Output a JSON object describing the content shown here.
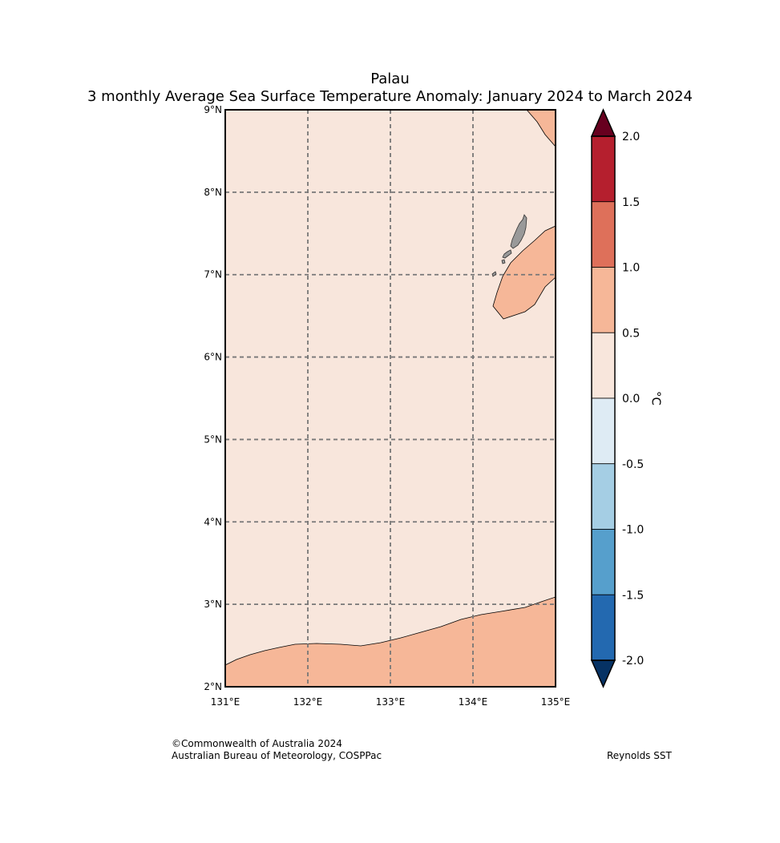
{
  "title": "Palau",
  "subtitle": "3 monthly Average Sea Surface Temperature Anomaly: January 2024 to March 2024",
  "credit": {
    "line1": "©Commonwealth of Australia 2024",
    "line2": "Australian Bureau of Meteorology, COSPPac"
  },
  "source": "Reynolds SST",
  "map": {
    "lon_range": [
      131,
      135
    ],
    "lat_range": [
      2,
      9
    ],
    "lon_ticks": [
      {
        "value": 131,
        "label": "131°E"
      },
      {
        "value": 132,
        "label": "132°E"
      },
      {
        "value": 133,
        "label": "133°E"
      },
      {
        "value": 134,
        "label": "134°E"
      },
      {
        "value": 135,
        "label": "135°E"
      }
    ],
    "lat_ticks": [
      {
        "value": 2,
        "label": "2°N"
      },
      {
        "value": 3,
        "label": "3°N"
      },
      {
        "value": 4,
        "label": "4°N"
      },
      {
        "value": 5,
        "label": "5°N"
      },
      {
        "value": 6,
        "label": "6°N"
      },
      {
        "value": 7,
        "label": "7°N"
      },
      {
        "value": 8,
        "label": "8°N"
      },
      {
        "value": 9,
        "label": "9°N"
      }
    ],
    "gridlines": true,
    "background_color": "#f8e6dc",
    "warm_color": "#f6b798",
    "land_color": "#999999"
  },
  "colorbar": {
    "unit": "°C",
    "levels": [
      "2.0",
      "1.5",
      "1.0",
      "0.5",
      "0.0",
      "-0.5",
      "-1.0",
      "-1.5",
      "-2.0"
    ],
    "colors": [
      "#b51f2e",
      "#de705a",
      "#f6b798",
      "#f8e6dc",
      "#deebf4",
      "#a5cee4",
      "#569fcc",
      "#2369b0"
    ],
    "over_color": "#67001f",
    "under_color": "#063264"
  }
}
